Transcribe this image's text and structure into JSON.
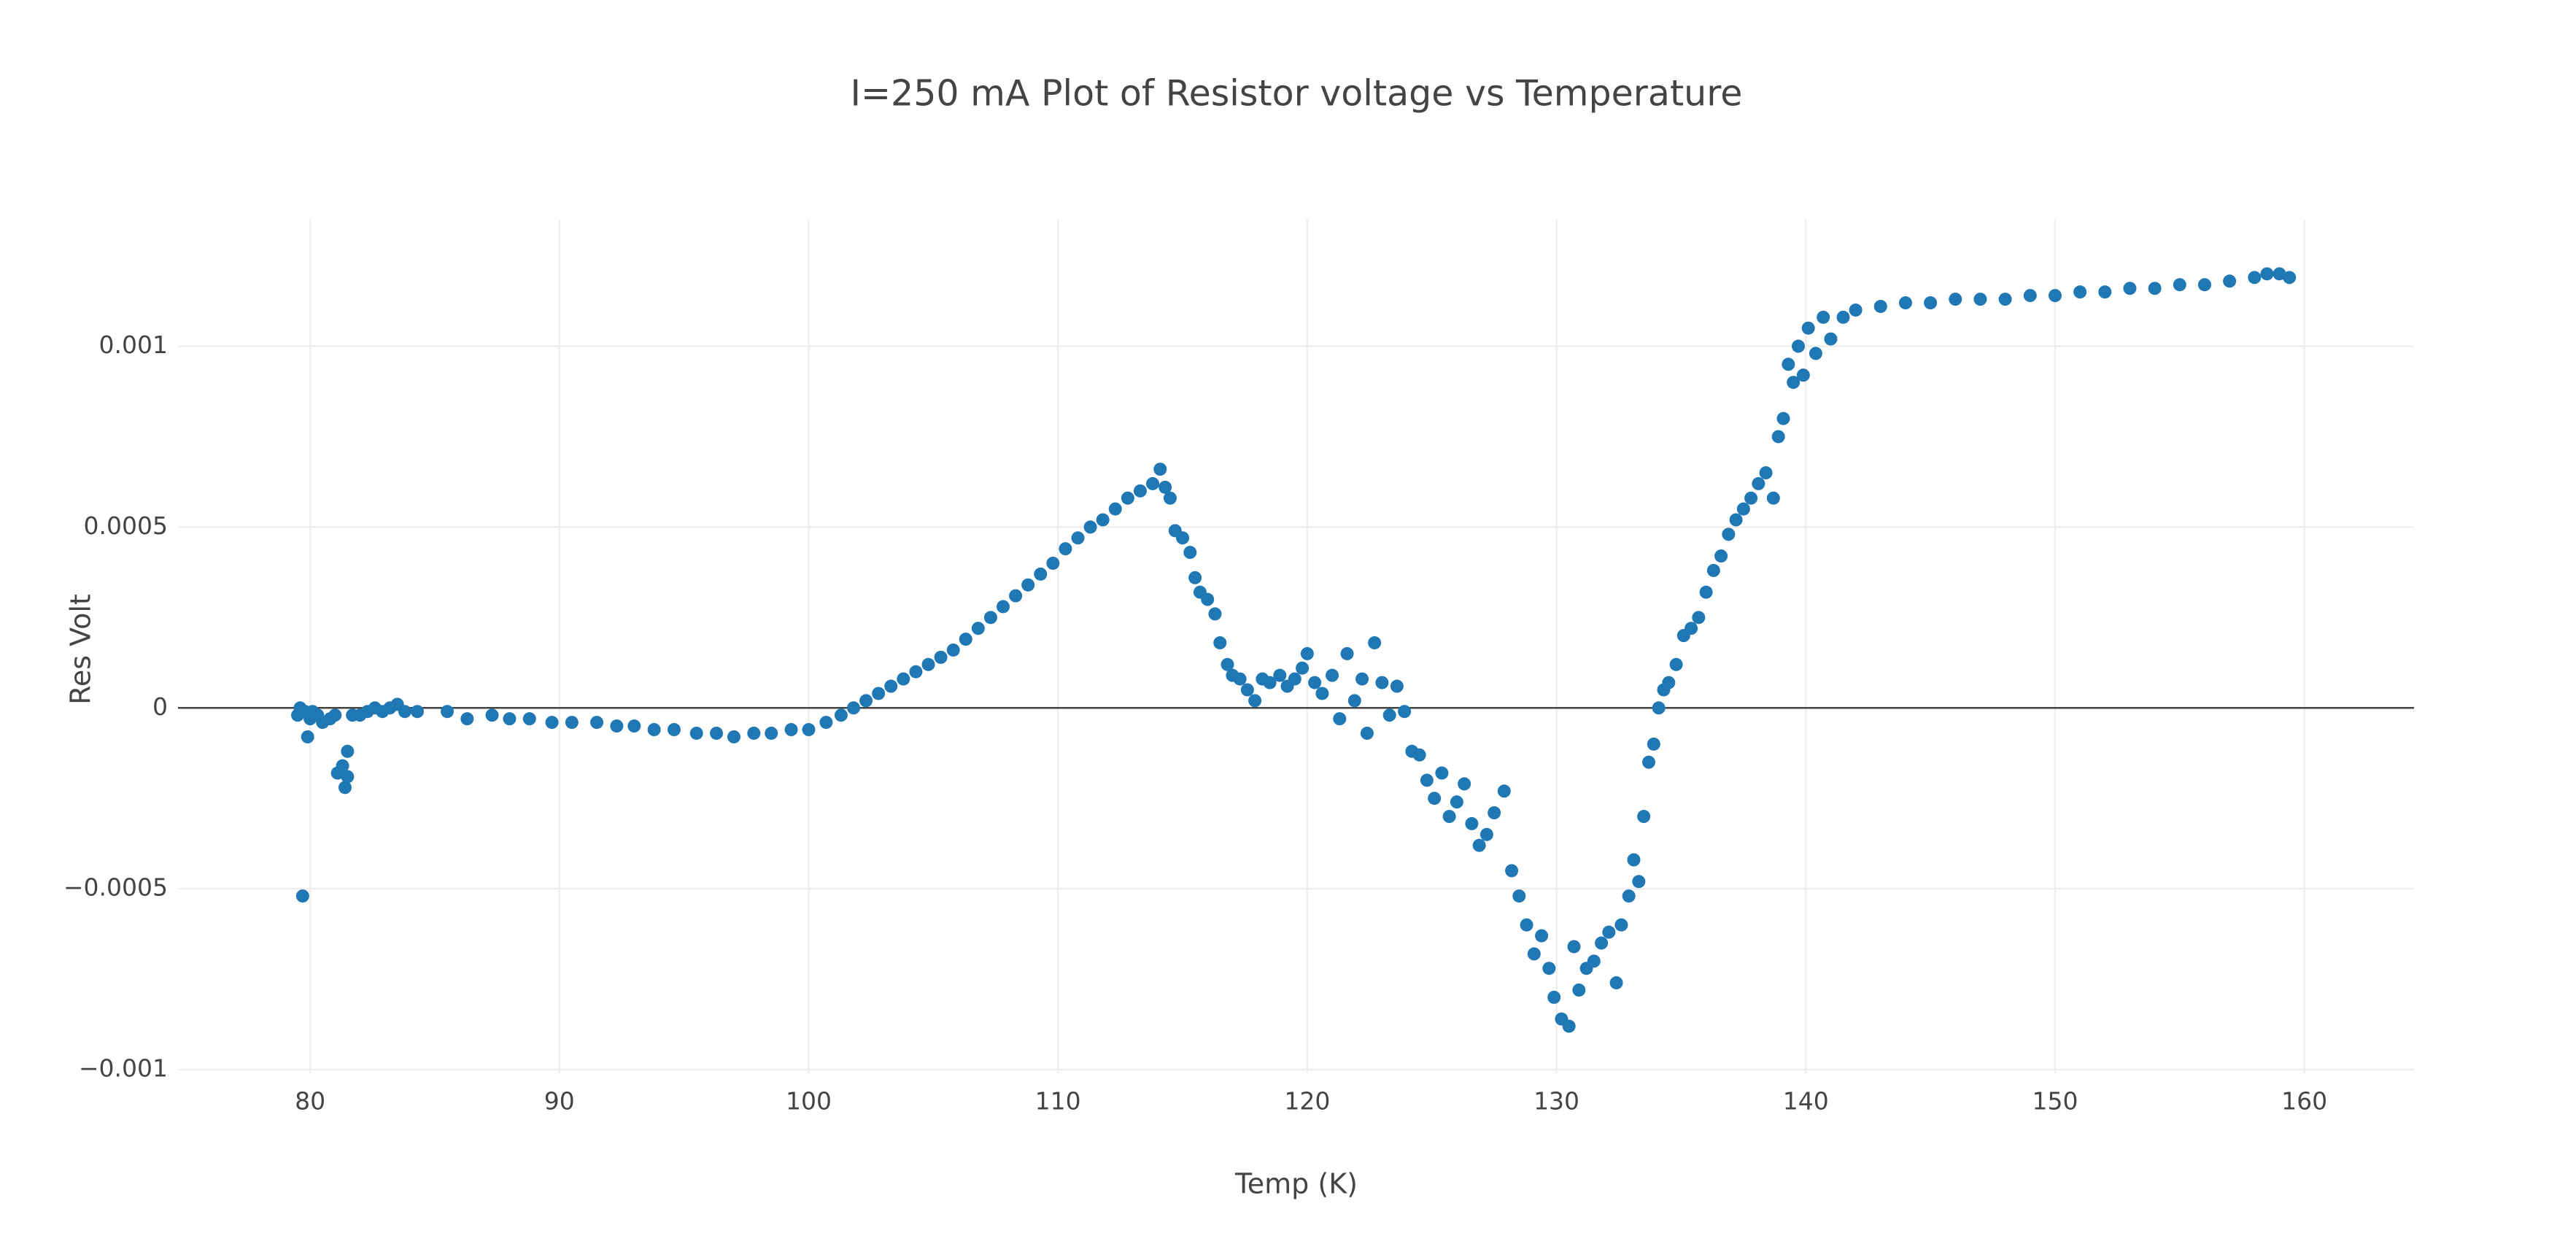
{
  "chart_data": {
    "type": "scatter",
    "title": "I=250 mA Plot of Resistor voltage vs Temperature",
    "x_label": "Temp (K)",
    "y_label": "Res Volt",
    "color": "#1f77b4",
    "grid": true,
    "zeroline": true,
    "xlim": [
      74.7,
      164.4
    ],
    "xticks": [
      80,
      90,
      100,
      110,
      120,
      130,
      140,
      150,
      160
    ],
    "ylim": [
      -0.00101,
      0.00135
    ],
    "yticks": [
      {
        "value": -0.001,
        "label": "−0.001"
      },
      {
        "value": -0.0005,
        "label": "−0.0005"
      },
      0,
      0.0005,
      0.001
    ],
    "x": [
      79.5,
      79.6,
      79.7,
      79.8,
      79.9,
      80.0,
      80.1,
      80.3,
      80.5,
      80.8,
      81.0,
      81.1,
      81.3,
      81.4,
      81.5,
      81.5,
      81.7,
      82.0,
      82.3,
      82.6,
      82.9,
      83.2,
      83.5,
      83.8,
      84.3,
      85.5,
      86.3,
      87.3,
      88.0,
      88.8,
      89.7,
      90.5,
      91.5,
      92.3,
      93.0,
      93.8,
      94.6,
      95.5,
      96.3,
      97.0,
      97.8,
      98.5,
      99.3,
      100.0,
      100.7,
      101.3,
      101.8,
      102.3,
      102.8,
      103.3,
      103.8,
      104.3,
      104.8,
      105.3,
      105.8,
      106.3,
      106.8,
      107.3,
      107.8,
      108.3,
      108.8,
      109.3,
      109.8,
      110.3,
      110.8,
      111.3,
      111.8,
      112.3,
      112.8,
      113.3,
      113.8,
      114.1,
      114.3,
      114.5,
      114.7,
      115.0,
      115.3,
      115.5,
      115.7,
      116.0,
      116.3,
      116.5,
      116.8,
      117.0,
      117.3,
      117.6,
      117.9,
      118.2,
      118.5,
      118.9,
      119.2,
      119.5,
      119.8,
      120.0,
      120.3,
      120.6,
      121.0,
      121.3,
      121.6,
      121.9,
      122.2,
      122.4,
      122.7,
      123.0,
      123.3,
      123.6,
      123.9,
      124.2,
      124.5,
      124.8,
      125.1,
      125.4,
      125.7,
      126.0,
      126.3,
      126.6,
      126.9,
      127.2,
      127.5,
      127.9,
      128.2,
      128.5,
      128.8,
      129.1,
      129.4,
      129.7,
      129.9,
      130.2,
      130.5,
      130.7,
      130.9,
      131.2,
      131.5,
      131.8,
      132.1,
      132.4,
      132.6,
      132.9,
      133.1,
      133.3,
      133.5,
      133.7,
      133.9,
      134.1,
      134.3,
      134.5,
      134.8,
      135.1,
      135.4,
      135.7,
      136.0,
      136.3,
      136.6,
      136.9,
      137.2,
      137.5,
      137.8,
      138.1,
      138.4,
      138.7,
      138.9,
      139.1,
      139.3,
      139.5,
      139.7,
      139.9,
      140.1,
      140.4,
      140.7,
      141.0,
      141.5,
      142.0,
      143,
      144,
      145,
      146,
      147,
      148,
      149,
      150,
      151,
      152,
      153,
      154,
      155,
      156,
      157,
      158,
      158.5,
      159,
      159.4
    ],
    "values": [
      -2e-05,
      0,
      -0.00052,
      -1e-05,
      -8e-05,
      -3e-05,
      -1e-05,
      -2e-05,
      -4e-05,
      -3e-05,
      -2e-05,
      -0.00018,
      -0.00016,
      -0.00022,
      -0.00019,
      -0.00012,
      -2e-05,
      -2e-05,
      -1e-05,
      0,
      -1e-05,
      0,
      1e-05,
      -1e-05,
      -1e-05,
      -1e-05,
      -3e-05,
      -2e-05,
      -3e-05,
      -3e-05,
      -4e-05,
      -4e-05,
      -4e-05,
      -5e-05,
      -5e-05,
      -6e-05,
      -6e-05,
      -7e-05,
      -7e-05,
      -8e-05,
      -7e-05,
      -7e-05,
      -6e-05,
      -6e-05,
      -4e-05,
      -2e-05,
      0,
      2e-05,
      4e-05,
      6e-05,
      8e-05,
      0.0001,
      0.00012,
      0.00014,
      0.00016,
      0.00019,
      0.00022,
      0.00025,
      0.00028,
      0.00031,
      0.00034,
      0.00037,
      0.0004,
      0.00044,
      0.00047,
      0.0005,
      0.00052,
      0.00055,
      0.00058,
      0.0006,
      0.00062,
      0.00066,
      0.00061,
      0.00058,
      0.00049,
      0.00047,
      0.00043,
      0.00036,
      0.00032,
      0.0003,
      0.00026,
      0.00018,
      0.00012,
      9e-05,
      8e-05,
      5e-05,
      2e-05,
      8e-05,
      7e-05,
      9e-05,
      6e-05,
      8e-05,
      0.00011,
      0.00015,
      7e-05,
      4e-05,
      9e-05,
      -3e-05,
      0.00015,
      2e-05,
      8e-05,
      -7e-05,
      0.00018,
      7e-05,
      -2e-05,
      6e-05,
      -1e-05,
      -0.00012,
      -0.00013,
      -0.0002,
      -0.00025,
      -0.00018,
      -0.0003,
      -0.00026,
      -0.00021,
      -0.00032,
      -0.00038,
      -0.00035,
      -0.00029,
      -0.00023,
      -0.00045,
      -0.00052,
      -0.0006,
      -0.00068,
      -0.00063,
      -0.00072,
      -0.0008,
      -0.00086,
      -0.00088,
      -0.00066,
      -0.00078,
      -0.00072,
      -0.0007,
      -0.00065,
      -0.00062,
      -0.00076,
      -0.0006,
      -0.00052,
      -0.00042,
      -0.00048,
      -0.0003,
      -0.00015,
      -0.0001,
      0,
      5e-05,
      7e-05,
      0.00012,
      0.0002,
      0.00022,
      0.00025,
      0.00032,
      0.00038,
      0.00042,
      0.00048,
      0.00052,
      0.00055,
      0.00058,
      0.00062,
      0.00065,
      0.00058,
      0.00075,
      0.0008,
      0.00095,
      0.0009,
      0.001,
      0.00092,
      0.00105,
      0.00098,
      0.00108,
      0.00102,
      0.00108,
      0.0011,
      0.00111,
      0.00112,
      0.00112,
      0.00113,
      0.00113,
      0.00113,
      0.00114,
      0.00114,
      0.00115,
      0.00115,
      0.00116,
      0.00116,
      0.00117,
      0.00117,
      0.00118,
      0.00119,
      0.0012,
      0.0012,
      0.00119
    ]
  }
}
